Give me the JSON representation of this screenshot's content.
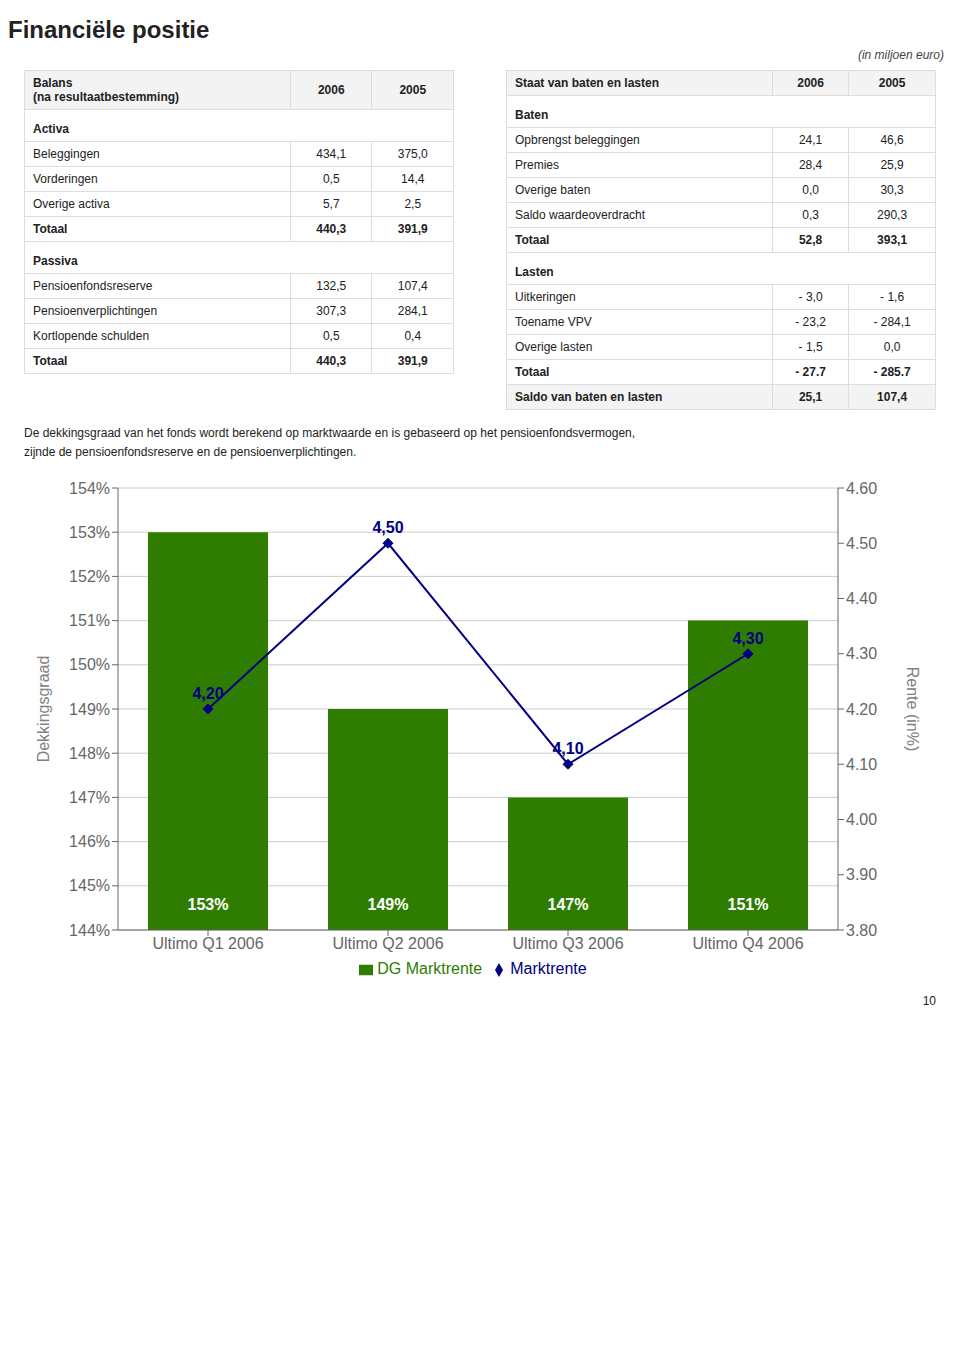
{
  "chart_data": {
    "type": "bar",
    "title": "Financiële positie",
    "subtitle": "(in miljoen euro)",
    "table": {
      "left": {
        "header": [
          "Balans\n(na resultaatbestemming)",
          "2006",
          "2005"
        ],
        "sections": [
          {
            "label": "Activa",
            "rows": [
              [
                "Beleggingen",
                "434,1",
                "375,0"
              ],
              [
                "Vorderingen",
                "0,5",
                "14,4"
              ],
              [
                "Overige activa",
                "5,7",
                "2,5"
              ]
            ],
            "total": [
              "Totaal",
              "440,3",
              "391,9"
            ]
          },
          {
            "label": "Passiva",
            "rows": [
              [
                "Pensioenfondsreserve",
                "132,5",
                "107,4"
              ],
              [
                "Pensioenverplichtingen",
                "307,3",
                "284,1"
              ],
              [
                "Kortlopende schulden",
                "0,5",
                "0,4"
              ]
            ],
            "total": [
              "Totaal",
              "440,3",
              "391,9"
            ]
          }
        ]
      },
      "right": {
        "header": [
          "Staat van baten en lasten",
          "2006",
          "2005"
        ],
        "sections": [
          {
            "label": "Baten",
            "rows": [
              [
                "Opbrengst beleggingen",
                "24,1",
                "46,6"
              ],
              [
                "Premies",
                "28,4",
                "25,9"
              ],
              [
                "Overige baten",
                "0,0",
                "30,3"
              ],
              [
                "Saldo waardeoverdracht",
                "0,3",
                "290,3"
              ]
            ],
            "total": [
              "Totaal",
              "52,8",
              "393,1"
            ]
          },
          {
            "label": "Lasten",
            "rows": [
              [
                "Uitkeringen",
                "- 3,0",
                "- 1,6"
              ],
              [
                "Toename VPV",
                "- 23,2",
                "- 284,1"
              ],
              [
                "Overige lasten",
                "- 1,5",
                "0,0"
              ]
            ],
            "total": [
              "Totaal",
              "- 27.7",
              "- 285.7"
            ]
          }
        ],
        "footer": [
          "Saldo van baten en lasten",
          "25,1",
          "107,4"
        ]
      }
    },
    "annotations": [
      "De dekkingsgraad van het fonds wordt berekend op marktwaarde en is gebaseerd op het pensioenfondsvermogen,\nzijnde de pensioenfondsreserve en de pensioenverplichtingen.",
      "10"
    ],
    "categories": [
      "Ultimo Q1 2006",
      "Ultimo Q2 2006",
      "Ultimo Q3 2006",
      "Ultimo Q4 2006"
    ],
    "series": [
      {
        "name": "DG Marktrente",
        "type": "bar",
        "color": "#2E7D00",
        "values": [
          153,
          149,
          147,
          151
        ],
        "value_labels": [
          "153%",
          "149%",
          "147%",
          "151%"
        ]
      },
      {
        "name": "Marktrente",
        "type": "line",
        "color": "#000080",
        "marker": "diamond",
        "axis": "y2",
        "values": [
          4.2,
          4.5,
          4.1,
          4.3
        ],
        "value_labels": [
          "4,20",
          "4,50",
          "4,10",
          "4,30"
        ]
      }
    ],
    "y_label": "Dekkingsgraad",
    "y2_label": "Rente (in%)",
    "ylim": [
      144,
      154
    ],
    "yticks": [
      {
        "value": 144,
        "label": "144%"
      },
      {
        "value": 145,
        "label": "145%"
      },
      {
        "value": 146,
        "label": "146%"
      },
      {
        "value": 147,
        "label": "147%"
      },
      {
        "value": 148,
        "label": "148%"
      },
      {
        "value": 149,
        "label": "149%"
      },
      {
        "value": 150,
        "label": "150%"
      },
      {
        "value": 151,
        "label": "151%"
      },
      {
        "value": 152,
        "label": "152%"
      },
      {
        "value": 153,
        "label": "153%"
      },
      {
        "value": 154,
        "label": "154%"
      }
    ],
    "y2lim": [
      3.8,
      4.6
    ],
    "y2ticks": [
      {
        "value": 3.8,
        "label": "3.80"
      },
      {
        "value": 3.9,
        "label": "3.90"
      },
      {
        "value": 4.0,
        "label": "4.00"
      },
      {
        "value": 4.1,
        "label": "4.10"
      },
      {
        "value": 4.2,
        "label": "4.20"
      },
      {
        "value": 4.3,
        "label": "4.30"
      },
      {
        "value": 4.4,
        "label": "4.40"
      },
      {
        "value": 4.5,
        "label": "4.50"
      },
      {
        "value": 4.6,
        "label": "4.60"
      }
    ],
    "grid": true,
    "legend": "bottom",
    "data_labels": true
  }
}
